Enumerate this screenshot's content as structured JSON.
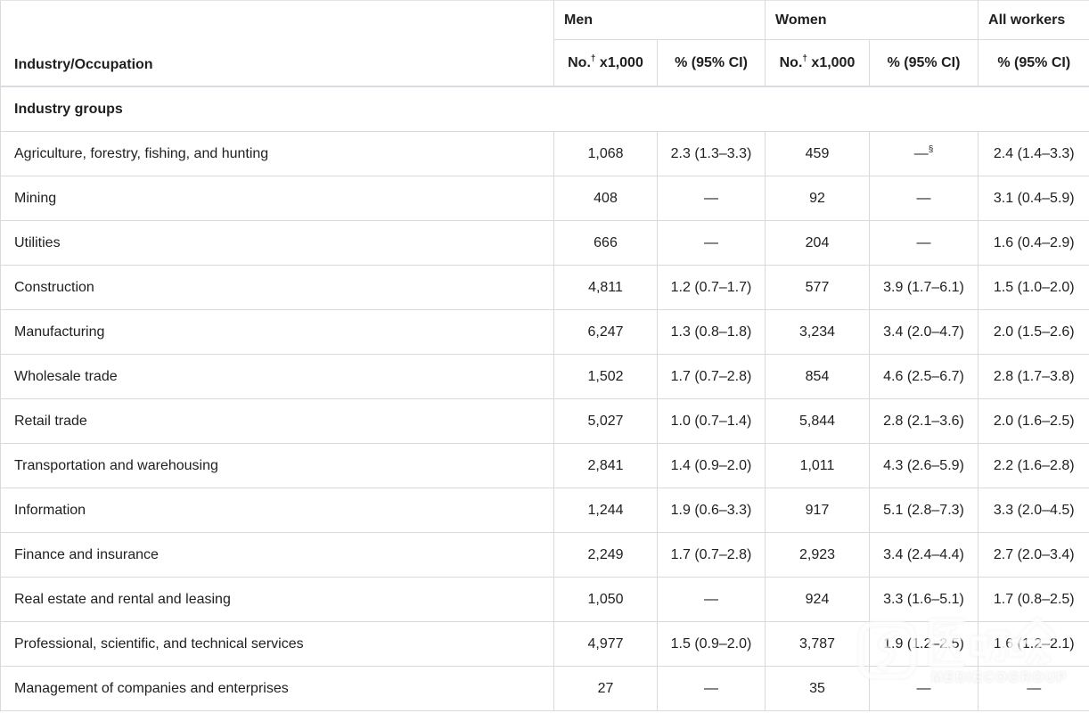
{
  "table": {
    "corner_header": "Industry/Occupation",
    "groups": [
      {
        "label": "Men",
        "span": 2
      },
      {
        "label": "Women",
        "span": 2
      },
      {
        "label": "All workers",
        "span": 1
      }
    ],
    "sub_headers": {
      "no_prefix": "No.",
      "no_sup": "†",
      "no_suffix": " x1,000",
      "pct_label": "% (95% CI)"
    },
    "section_header": "Industry groups",
    "rows": [
      {
        "label": "Agriculture, forestry, fishing, and hunting",
        "men_no": "1,068",
        "men_pct": "2.3 (1.3–3.3)",
        "women_no": "459",
        "women_pct": "—§",
        "all_pct": "2.4 (1.4–3.3)"
      },
      {
        "label": "Mining",
        "men_no": "408",
        "men_pct": "—",
        "women_no": "92",
        "women_pct": "—",
        "all_pct": "3.1 (0.4–5.9)"
      },
      {
        "label": "Utilities",
        "men_no": "666",
        "men_pct": "—",
        "women_no": "204",
        "women_pct": "—",
        "all_pct": "1.6 (0.4–2.9)"
      },
      {
        "label": "Construction",
        "men_no": "4,811",
        "men_pct": "1.2 (0.7–1.7)",
        "women_no": "577",
        "women_pct": "3.9 (1.7–6.1)",
        "all_pct": "1.5 (1.0–2.0)"
      },
      {
        "label": "Manufacturing",
        "men_no": "6,247",
        "men_pct": "1.3 (0.8–1.8)",
        "women_no": "3,234",
        "women_pct": "3.4 (2.0–4.7)",
        "all_pct": "2.0 (1.5–2.6)"
      },
      {
        "label": "Wholesale trade",
        "men_no": "1,502",
        "men_pct": "1.7 (0.7–2.8)",
        "women_no": "854",
        "women_pct": "4.6 (2.5–6.7)",
        "all_pct": "2.8 (1.7–3.8)"
      },
      {
        "label": "Retail trade",
        "men_no": "5,027",
        "men_pct": "1.0 (0.7–1.4)",
        "women_no": "5,844",
        "women_pct": "2.8 (2.1–3.6)",
        "all_pct": "2.0 (1.6–2.5)"
      },
      {
        "label": "Transportation and warehousing",
        "men_no": "2,841",
        "men_pct": "1.4 (0.9–2.0)",
        "women_no": "1,011",
        "women_pct": "4.3 (2.6–5.9)",
        "all_pct": "2.2 (1.6–2.8)"
      },
      {
        "label": "Information",
        "men_no": "1,244",
        "men_pct": "1.9 (0.6–3.3)",
        "women_no": "917",
        "women_pct": "5.1 (2.8–7.3)",
        "all_pct": "3.3 (2.0–4.5)"
      },
      {
        "label": "Finance and insurance",
        "men_no": "2,249",
        "men_pct": "1.7 (0.7–2.8)",
        "women_no": "2,923",
        "women_pct": "3.4 (2.4–4.4)",
        "all_pct": "2.7 (2.0–3.4)"
      },
      {
        "label": "Real estate and rental and leasing",
        "men_no": "1,050",
        "men_pct": "—",
        "women_no": "924",
        "women_pct": "3.3 (1.6–5.1)",
        "all_pct": "1.7 (0.8–2.5)"
      },
      {
        "label": "Professional, scientific, and technical services",
        "men_no": "4,977",
        "men_pct": "1.5 (0.9–2.0)",
        "women_no": "3,787",
        "women_pct": "1.9 (1.2–2.5)",
        "all_pct": "1.6 (1.2–2.1)"
      },
      {
        "label": "Management of companies and enterprises",
        "men_no": "27",
        "men_pct": "—",
        "women_no": "35",
        "women_pct": "—",
        "all_pct": "—"
      }
    ]
  },
  "watermark": {
    "cn": "医咖会",
    "en": "MEDIECOGROUP"
  }
}
